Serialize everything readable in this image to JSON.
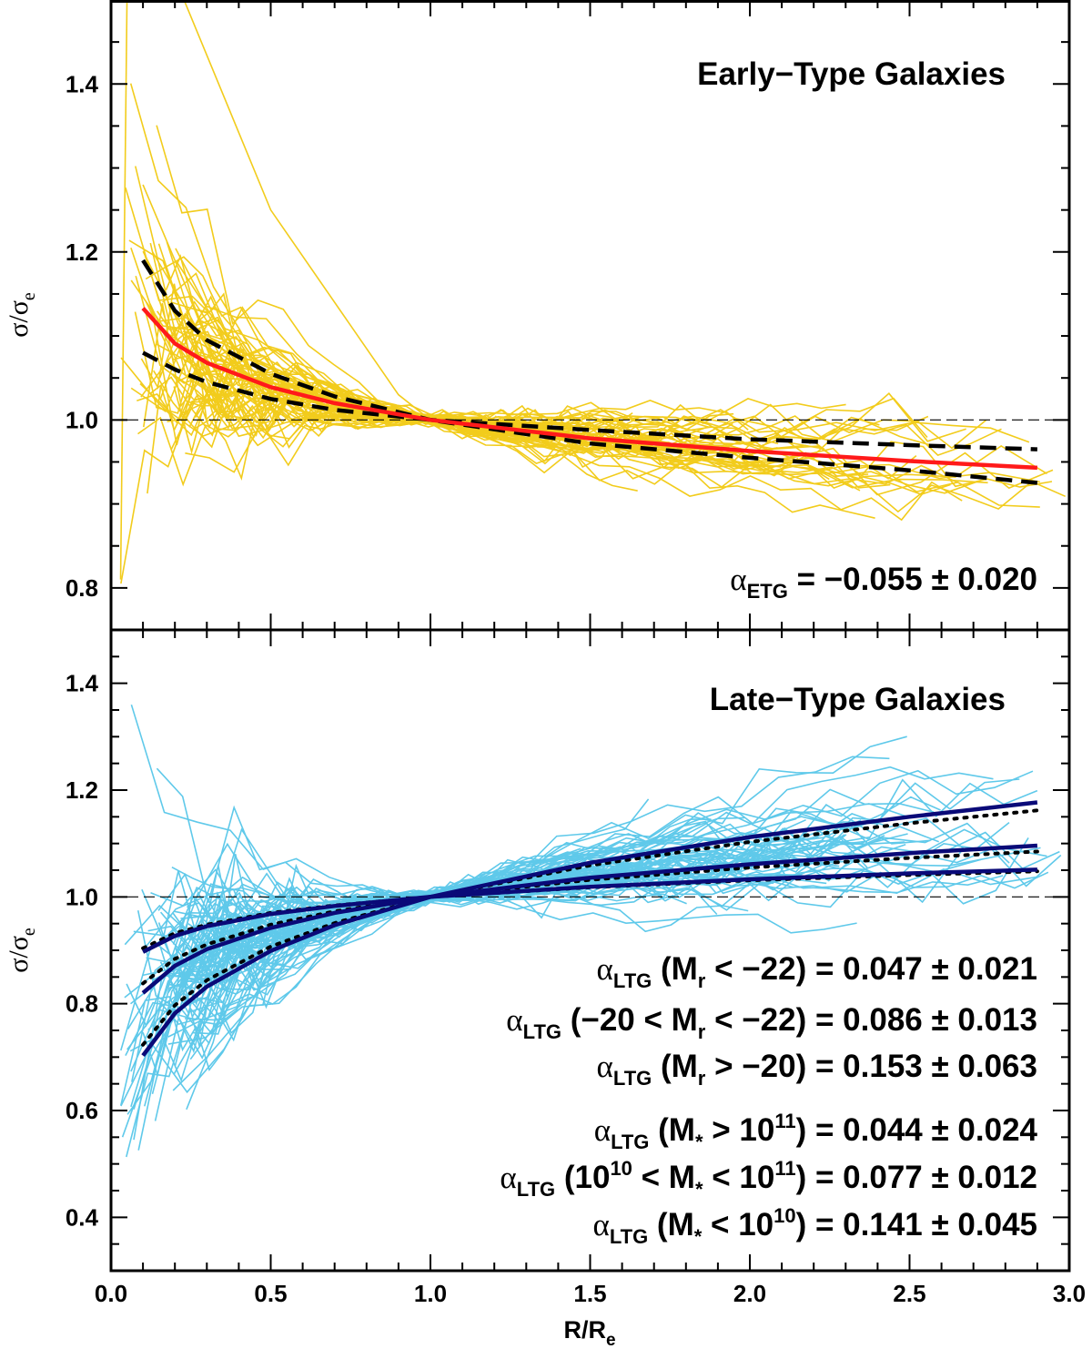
{
  "chart_data": [
    {
      "type": "line",
      "title": "Early−Type Galaxies",
      "xlabel": "R/R",
      "xlabel_subscript": "e",
      "ylabel": "σ/σ",
      "ylabel_subscript": "e",
      "xlim": [
        0.0,
        3.0
      ],
      "ylim": [
        0.75,
        1.5
      ],
      "x_ticks": [
        "0.0",
        "0.5",
        "1.0",
        "1.5",
        "2.0",
        "2.5",
        "3.0"
      ],
      "y_ticks": [
        "0.8",
        "1.0",
        "1.2",
        "1.4"
      ],
      "reference_line": 1.0,
      "individual_profiles_color": "#f2cc1c",
      "mean_fit": {
        "name": "mean profile",
        "color": "#ff1a1a",
        "x": [
          0.1,
          0.2,
          0.3,
          0.5,
          0.7,
          1.0,
          1.5,
          2.0,
          2.5,
          2.9
        ],
        "y": [
          1.133,
          1.091,
          1.068,
          1.039,
          1.02,
          1.0,
          0.978,
          0.963,
          0.951,
          0.943
        ]
      },
      "dashed_bounds": [
        {
          "name": "upper bound",
          "color": "#000000",
          "x": [
            0.1,
            0.2,
            0.3,
            0.5,
            0.7,
            1.0,
            1.5,
            2.0,
            2.5,
            2.9
          ],
          "y": [
            1.19,
            1.13,
            1.095,
            1.055,
            1.028,
            1.0,
            0.988,
            0.977,
            0.97,
            0.965
          ]
        },
        {
          "name": "lower bound",
          "color": "#000000",
          "x": [
            0.1,
            0.2,
            0.3,
            0.5,
            0.7,
            1.0,
            1.5,
            2.0,
            2.5,
            2.9
          ],
          "y": [
            1.08,
            1.06,
            1.045,
            1.025,
            1.012,
            1.0,
            0.972,
            0.955,
            0.94,
            0.925
          ]
        }
      ],
      "annotations": [
        {
          "greek": "α",
          "sub": "ETG",
          "text": " = −0.055 ± 0.020"
        }
      ]
    },
    {
      "type": "line",
      "title": "Late−Type Galaxies",
      "xlabel": "R/R",
      "xlabel_subscript": "e",
      "ylabel": "σ/σ",
      "ylabel_subscript": "e",
      "xlim": [
        0.0,
        3.0
      ],
      "ylim": [
        0.3,
        1.5
      ],
      "x_ticks": [
        "0.0",
        "0.5",
        "1.0",
        "1.5",
        "2.0",
        "2.5",
        "3.0"
      ],
      "y_ticks": [
        "0.4",
        "0.6",
        "0.8",
        "1.0",
        "1.2",
        "1.4"
      ],
      "reference_line": 1.0,
      "individual_profiles_color": "#5fc9ea",
      "fits_color": "#0a0a78",
      "series": [
        {
          "name": "α = 0.047",
          "x": [
            0.1,
            0.2,
            0.3,
            0.5,
            0.7,
            1.0,
            1.5,
            2.0,
            2.5,
            2.9
          ],
          "y": [
            0.897,
            0.927,
            0.945,
            0.968,
            0.983,
            1.0,
            1.019,
            1.033,
            1.044,
            1.051
          ]
        },
        {
          "name": "α = 0.086",
          "x": [
            0.1,
            0.2,
            0.3,
            0.5,
            0.7,
            1.0,
            1.5,
            2.0,
            2.5,
            2.9
          ],
          "y": [
            0.82,
            0.871,
            0.902,
            0.942,
            0.97,
            1.0,
            1.036,
            1.061,
            1.082,
            1.096
          ]
        },
        {
          "name": "α = 0.153",
          "x": [
            0.1,
            0.2,
            0.3,
            0.5,
            0.7,
            1.0,
            1.5,
            2.0,
            2.5,
            2.9
          ],
          "y": [
            0.703,
            0.782,
            0.832,
            0.899,
            0.947,
            1.0,
            1.064,
            1.112,
            1.15,
            1.177
          ]
        }
      ],
      "dotted_series": [
        {
          "name": "α = 0.044",
          "x": [
            0.1,
            0.2,
            0.3,
            0.5,
            0.7,
            1.0,
            1.5,
            2.0,
            2.5,
            2.9
          ],
          "y": [
            0.904,
            0.932,
            0.948,
            0.97,
            0.984,
            1.0,
            1.018,
            1.031,
            1.041,
            1.048
          ]
        },
        {
          "name": "α = 0.077",
          "x": [
            0.1,
            0.2,
            0.3,
            0.5,
            0.7,
            1.0,
            1.5,
            2.0,
            2.5,
            2.9
          ],
          "y": [
            0.838,
            0.884,
            0.911,
            0.948,
            0.973,
            1.0,
            1.032,
            1.055,
            1.073,
            1.085
          ]
        },
        {
          "name": "α = 0.141",
          "x": [
            0.1,
            0.2,
            0.3,
            0.5,
            0.7,
            1.0,
            1.5,
            2.0,
            2.5,
            2.9
          ],
          "y": [
            0.723,
            0.797,
            0.844,
            0.907,
            0.951,
            1.0,
            1.059,
            1.103,
            1.138,
            1.162
          ]
        }
      ],
      "annotations": [
        {
          "greek": "α",
          "sub": "LTG",
          "text": " (M",
          "sub2": "r",
          "text2": " < −22) = 0.047 ± 0.021"
        },
        {
          "greek": "α",
          "sub": "LTG",
          "text": " (−20 < M",
          "sub2": "r",
          "text2": " < −22) = 0.086 ± 0.013"
        },
        {
          "greek": "α",
          "sub": "LTG",
          "text": " (M",
          "sub2": "r",
          "text2": " > −20) = 0.153 ± 0.063"
        },
        {
          "greek": "α",
          "sub": "LTG",
          "text": " (M",
          "sub2": "*",
          "text2": " > 10",
          "sup": "11",
          "text3": ") = 0.044 ± 0.024"
        },
        {
          "greek": "α",
          "sub": "LTG",
          "text": " (10",
          "sup0": "10",
          "text1": " < M",
          "sub2": "*",
          "text2": " < 10",
          "sup": "11",
          "text3": ") = 0.077 ± 0.012"
        },
        {
          "greek": "α",
          "sub": "LTG",
          "text": " (M",
          "sub2": "*",
          "text2": " < 10",
          "sup": "10",
          "text3": ") = 0.141 ± 0.045"
        }
      ]
    }
  ]
}
